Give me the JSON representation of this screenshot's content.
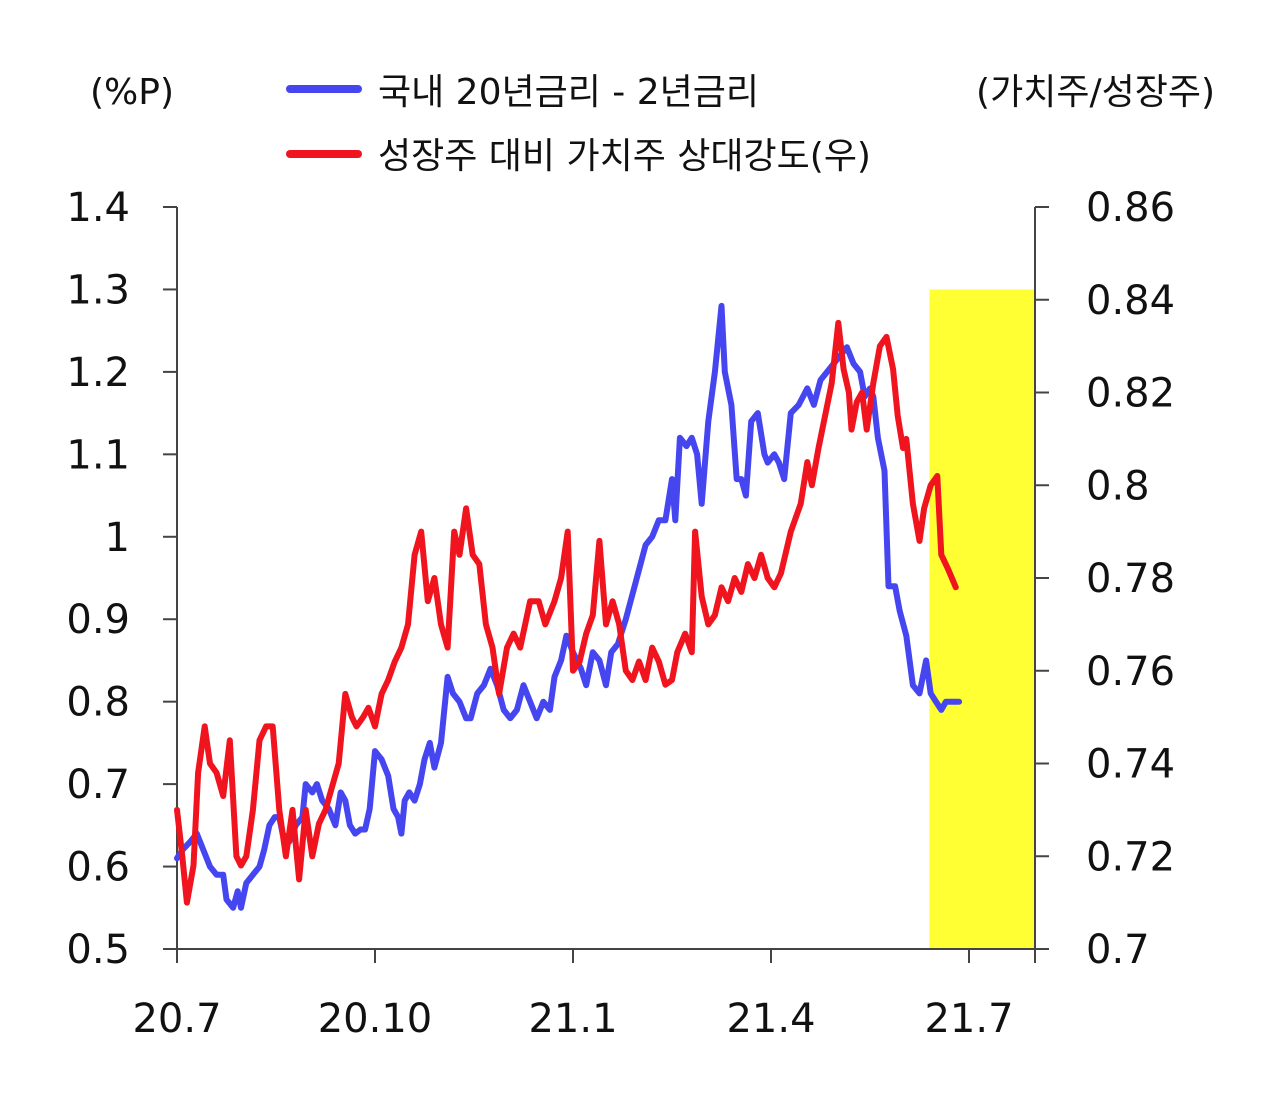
{
  "chart_data": {
    "type": "line",
    "left_unit": "(%P)",
    "right_unit": "(가치주/성장주)",
    "x_ticks": [
      "20.7",
      "20.10",
      "21.1",
      "21.4",
      "21.7"
    ],
    "y_left": {
      "min": 0.5,
      "max": 1.4,
      "ticks": [
        "0.5",
        "0.6",
        "0.7",
        "0.8",
        "0.9",
        "1",
        "1.1",
        "1.2",
        "1.3",
        "1.4"
      ]
    },
    "y_right": {
      "min": 0.7,
      "max": 0.86,
      "ticks": [
        "0.7",
        "0.72",
        "0.74",
        "0.76",
        "0.78",
        "0.8",
        "0.82",
        "0.84",
        "0.86"
      ]
    },
    "highlight": {
      "from_month": 11.4,
      "to_month": 13.0,
      "color": "#ffff33",
      "y_top": 1.3
    },
    "series": [
      {
        "name": "국내 20년금리 - 2년금리",
        "axis": "left",
        "color": "#4646f0",
        "points": [
          [
            0.0,
            0.61
          ],
          [
            0.08,
            0.62
          ],
          [
            0.2,
            0.63
          ],
          [
            0.3,
            0.64
          ],
          [
            0.4,
            0.62
          ],
          [
            0.5,
            0.6
          ],
          [
            0.6,
            0.59
          ],
          [
            0.7,
            0.59
          ],
          [
            0.75,
            0.56
          ],
          [
            0.85,
            0.55
          ],
          [
            0.92,
            0.57
          ],
          [
            0.97,
            0.55
          ],
          [
            1.05,
            0.58
          ],
          [
            1.15,
            0.59
          ],
          [
            1.25,
            0.6
          ],
          [
            1.32,
            0.62
          ],
          [
            1.4,
            0.65
          ],
          [
            1.48,
            0.66
          ],
          [
            1.55,
            0.66
          ],
          [
            1.6,
            0.64
          ],
          [
            1.7,
            0.63
          ],
          [
            1.8,
            0.65
          ],
          [
            1.9,
            0.66
          ],
          [
            1.95,
            0.7
          ],
          [
            2.05,
            0.69
          ],
          [
            2.12,
            0.7
          ],
          [
            2.2,
            0.68
          ],
          [
            2.3,
            0.67
          ],
          [
            2.4,
            0.65
          ],
          [
            2.48,
            0.69
          ],
          [
            2.55,
            0.68
          ],
          [
            2.62,
            0.65
          ],
          [
            2.7,
            0.64
          ],
          [
            2.78,
            0.645
          ],
          [
            2.85,
            0.645
          ],
          [
            2.92,
            0.67
          ],
          [
            3.0,
            0.74
          ],
          [
            3.1,
            0.73
          ],
          [
            3.2,
            0.71
          ],
          [
            3.28,
            0.67
          ],
          [
            3.35,
            0.66
          ],
          [
            3.4,
            0.64
          ],
          [
            3.45,
            0.68
          ],
          [
            3.52,
            0.69
          ],
          [
            3.6,
            0.68
          ],
          [
            3.68,
            0.7
          ],
          [
            3.75,
            0.73
          ],
          [
            3.83,
            0.75
          ],
          [
            3.9,
            0.72
          ],
          [
            4.0,
            0.75
          ],
          [
            4.1,
            0.83
          ],
          [
            4.18,
            0.81
          ],
          [
            4.28,
            0.8
          ],
          [
            4.38,
            0.78
          ],
          [
            4.45,
            0.78
          ],
          [
            4.55,
            0.81
          ],
          [
            4.65,
            0.82
          ],
          [
            4.75,
            0.84
          ],
          [
            4.85,
            0.82
          ],
          [
            4.95,
            0.79
          ],
          [
            5.05,
            0.78
          ],
          [
            5.15,
            0.79
          ],
          [
            5.25,
            0.82
          ],
          [
            5.35,
            0.8
          ],
          [
            5.45,
            0.78
          ],
          [
            5.55,
            0.8
          ],
          [
            5.65,
            0.79
          ],
          [
            5.72,
            0.83
          ],
          [
            5.82,
            0.85
          ],
          [
            5.9,
            0.88
          ],
          [
            6.0,
            0.86
          ],
          [
            6.12,
            0.84
          ],
          [
            6.2,
            0.82
          ],
          [
            6.3,
            0.86
          ],
          [
            6.4,
            0.85
          ],
          [
            6.5,
            0.82
          ],
          [
            6.58,
            0.86
          ],
          [
            6.68,
            0.87
          ],
          [
            6.8,
            0.9
          ],
          [
            6.9,
            0.93
          ],
          [
            7.0,
            0.96
          ],
          [
            7.1,
            0.99
          ],
          [
            7.2,
            1.0
          ],
          [
            7.3,
            1.02
          ],
          [
            7.4,
            1.02
          ],
          [
            7.5,
            1.07
          ],
          [
            7.55,
            1.02
          ],
          [
            7.62,
            1.12
          ],
          [
            7.72,
            1.11
          ],
          [
            7.8,
            1.12
          ],
          [
            7.88,
            1.1
          ],
          [
            7.95,
            1.04
          ],
          [
            8.05,
            1.14
          ],
          [
            8.15,
            1.2
          ],
          [
            8.25,
            1.28
          ],
          [
            8.3,
            1.2
          ],
          [
            8.4,
            1.16
          ],
          [
            8.48,
            1.07
          ],
          [
            8.55,
            1.07
          ],
          [
            8.62,
            1.05
          ],
          [
            8.7,
            1.14
          ],
          [
            8.8,
            1.15
          ],
          [
            8.9,
            1.1
          ],
          [
            8.95,
            1.09
          ],
          [
            9.05,
            1.1
          ],
          [
            9.12,
            1.09
          ],
          [
            9.2,
            1.07
          ],
          [
            9.3,
            1.15
          ],
          [
            9.42,
            1.16
          ],
          [
            9.55,
            1.18
          ],
          [
            9.65,
            1.16
          ],
          [
            9.75,
            1.19
          ],
          [
            9.85,
            1.2
          ],
          [
            9.95,
            1.21
          ],
          [
            10.05,
            1.22
          ],
          [
            10.15,
            1.23
          ],
          [
            10.25,
            1.21
          ],
          [
            10.35,
            1.2
          ],
          [
            10.42,
            1.17
          ],
          [
            10.5,
            1.18
          ],
          [
            10.55,
            1.17
          ],
          [
            10.62,
            1.12
          ],
          [
            10.72,
            1.08
          ],
          [
            10.78,
            0.94
          ],
          [
            10.88,
            0.94
          ],
          [
            10.95,
            0.91
          ],
          [
            11.05,
            0.88
          ],
          [
            11.15,
            0.82
          ],
          [
            11.25,
            0.81
          ],
          [
            11.35,
            0.85
          ],
          [
            11.42,
            0.81
          ],
          [
            11.5,
            0.8
          ],
          [
            11.58,
            0.79
          ],
          [
            11.65,
            0.8
          ],
          [
            11.78,
            0.8
          ],
          [
            11.85,
            0.8
          ]
        ]
      },
      {
        "name": "성장주 대비 가치주 상대강도(우)",
        "axis": "right",
        "color": "#f0141e",
        "points": [
          [
            0.0,
            0.73
          ],
          [
            0.08,
            0.72
          ],
          [
            0.15,
            0.71
          ],
          [
            0.25,
            0.718
          ],
          [
            0.32,
            0.738
          ],
          [
            0.42,
            0.748
          ],
          [
            0.5,
            0.74
          ],
          [
            0.6,
            0.738
          ],
          [
            0.7,
            0.733
          ],
          [
            0.8,
            0.745
          ],
          [
            0.9,
            0.72
          ],
          [
            0.97,
            0.718
          ],
          [
            1.05,
            0.72
          ],
          [
            1.15,
            0.73
          ],
          [
            1.25,
            0.745
          ],
          [
            1.35,
            0.748
          ],
          [
            1.45,
            0.748
          ],
          [
            1.55,
            0.73
          ],
          [
            1.65,
            0.72
          ],
          [
            1.75,
            0.73
          ],
          [
            1.85,
            0.715
          ],
          [
            1.95,
            0.73
          ],
          [
            2.05,
            0.72
          ],
          [
            2.15,
            0.727
          ],
          [
            2.25,
            0.73
          ],
          [
            2.35,
            0.735
          ],
          [
            2.45,
            0.74
          ],
          [
            2.55,
            0.755
          ],
          [
            2.65,
            0.75
          ],
          [
            2.72,
            0.748
          ],
          [
            2.82,
            0.75
          ],
          [
            2.9,
            0.752
          ],
          [
            3.0,
            0.748
          ],
          [
            3.1,
            0.755
          ],
          [
            3.2,
            0.758
          ],
          [
            3.3,
            0.762
          ],
          [
            3.4,
            0.765
          ],
          [
            3.5,
            0.77
          ],
          [
            3.6,
            0.785
          ],
          [
            3.7,
            0.79
          ],
          [
            3.8,
            0.775
          ],
          [
            3.9,
            0.78
          ],
          [
            4.0,
            0.77
          ],
          [
            4.1,
            0.765
          ],
          [
            4.2,
            0.79
          ],
          [
            4.28,
            0.785
          ],
          [
            4.38,
            0.795
          ],
          [
            4.48,
            0.785
          ],
          [
            4.58,
            0.783
          ],
          [
            4.68,
            0.77
          ],
          [
            4.78,
            0.765
          ],
          [
            4.88,
            0.755
          ],
          [
            5.0,
            0.765
          ],
          [
            5.1,
            0.768
          ],
          [
            5.2,
            0.765
          ],
          [
            5.35,
            0.775
          ],
          [
            5.48,
            0.775
          ],
          [
            5.58,
            0.77
          ],
          [
            5.72,
            0.775
          ],
          [
            5.82,
            0.78
          ],
          [
            5.92,
            0.79
          ],
          [
            6.0,
            0.76
          ],
          [
            6.1,
            0.762
          ],
          [
            6.2,
            0.768
          ],
          [
            6.3,
            0.772
          ],
          [
            6.4,
            0.788
          ],
          [
            6.5,
            0.77
          ],
          [
            6.6,
            0.775
          ],
          [
            6.7,
            0.77
          ],
          [
            6.8,
            0.76
          ],
          [
            6.9,
            0.758
          ],
          [
            7.0,
            0.762
          ],
          [
            7.1,
            0.758
          ],
          [
            7.2,
            0.765
          ],
          [
            7.3,
            0.762
          ],
          [
            7.4,
            0.757
          ],
          [
            7.5,
            0.758
          ],
          [
            7.58,
            0.764
          ],
          [
            7.7,
            0.768
          ],
          [
            7.8,
            0.764
          ],
          [
            7.85,
            0.79
          ],
          [
            7.95,
            0.776
          ],
          [
            8.05,
            0.77
          ],
          [
            8.15,
            0.772
          ],
          [
            8.25,
            0.778
          ],
          [
            8.35,
            0.775
          ],
          [
            8.45,
            0.78
          ],
          [
            8.55,
            0.777
          ],
          [
            8.65,
            0.783
          ],
          [
            8.75,
            0.78
          ],
          [
            8.85,
            0.785
          ],
          [
            8.95,
            0.78
          ],
          [
            9.05,
            0.778
          ],
          [
            9.15,
            0.781
          ],
          [
            9.3,
            0.79
          ],
          [
            9.45,
            0.796
          ],
          [
            9.55,
            0.805
          ],
          [
            9.62,
            0.8
          ],
          [
            9.72,
            0.808
          ],
          [
            9.82,
            0.815
          ],
          [
            9.92,
            0.822
          ],
          [
            10.02,
            0.835
          ],
          [
            10.1,
            0.825
          ],
          [
            10.18,
            0.82
          ],
          [
            10.22,
            0.812
          ],
          [
            10.3,
            0.818
          ],
          [
            10.38,
            0.82
          ],
          [
            10.45,
            0.812
          ],
          [
            10.55,
            0.822
          ],
          [
            10.65,
            0.83
          ],
          [
            10.75,
            0.832
          ],
          [
            10.85,
            0.825
          ],
          [
            10.92,
            0.815
          ],
          [
            11.0,
            0.808
          ],
          [
            11.05,
            0.81
          ],
          [
            11.15,
            0.796
          ],
          [
            11.25,
            0.788
          ],
          [
            11.32,
            0.795
          ],
          [
            11.42,
            0.8
          ],
          [
            11.52,
            0.802
          ],
          [
            11.58,
            0.785
          ],
          [
            11.68,
            0.782
          ],
          [
            11.8,
            0.778
          ]
        ]
      }
    ]
  }
}
